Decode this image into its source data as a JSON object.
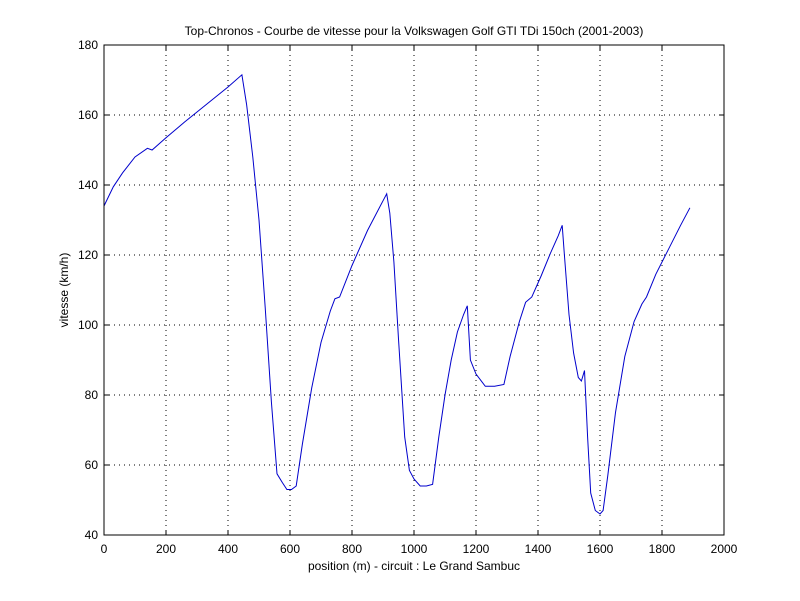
{
  "chart_data": {
    "type": "line",
    "title": "Top-Chronos - Courbe de vitesse pour la Volkswagen Golf GTI TDi 150ch (2001-2003)",
    "xlabel": "position (m) - circuit : Le Grand Sambuc",
    "ylabel": "vitesse (km/h)",
    "xlim": [
      0,
      2000
    ],
    "ylim": [
      40,
      180
    ],
    "xticks": [
      0,
      200,
      400,
      600,
      800,
      1000,
      1200,
      1400,
      1600,
      1800,
      2000
    ],
    "yticks": [
      40,
      60,
      80,
      100,
      120,
      140,
      160,
      180
    ],
    "grid": true,
    "line_color": "#0000cc",
    "series": [
      {
        "x": [
          0,
          30,
          60,
          100,
          140,
          155,
          200,
          260,
          330,
          400,
          445,
          460,
          480,
          500,
          520,
          540,
          558,
          575,
          590,
          605,
          620,
          640,
          670,
          700,
          730,
          745,
          760,
          800,
          850,
          900,
          912,
          922,
          935,
          950,
          970,
          985,
          1000,
          1020,
          1040,
          1060,
          1080,
          1100,
          1120,
          1140,
          1160,
          1172,
          1182,
          1200,
          1230,
          1260,
          1290,
          1310,
          1340,
          1360,
          1380,
          1410,
          1440,
          1465,
          1478,
          1485,
          1500,
          1515,
          1530,
          1540,
          1550,
          1560,
          1570,
          1585,
          1600,
          1610,
          1625,
          1650,
          1680,
          1710,
          1735,
          1750,
          1780,
          1820,
          1860,
          1890
        ],
        "y": [
          134,
          139.5,
          143.5,
          148,
          150.5,
          150,
          153.5,
          158,
          163,
          168,
          171.5,
          163,
          148,
          130,
          105,
          78,
          57.5,
          55,
          53,
          53,
          54,
          66,
          82,
          95,
          104,
          107.5,
          108,
          117,
          127,
          135.5,
          137.5,
          132,
          118,
          96,
          68,
          58.5,
          56,
          54,
          54,
          54.5,
          68,
          80,
          90,
          98,
          103,
          105.5,
          90,
          86,
          82.5,
          82.5,
          83,
          91,
          101,
          106.5,
          108,
          114,
          120.5,
          125.5,
          128.5,
          120,
          103,
          92,
          85,
          84,
          87,
          68,
          52,
          47,
          46,
          47,
          57,
          75,
          91,
          101,
          106,
          108,
          114.5,
          121.5,
          128.5,
          133.5
        ]
      }
    ]
  }
}
